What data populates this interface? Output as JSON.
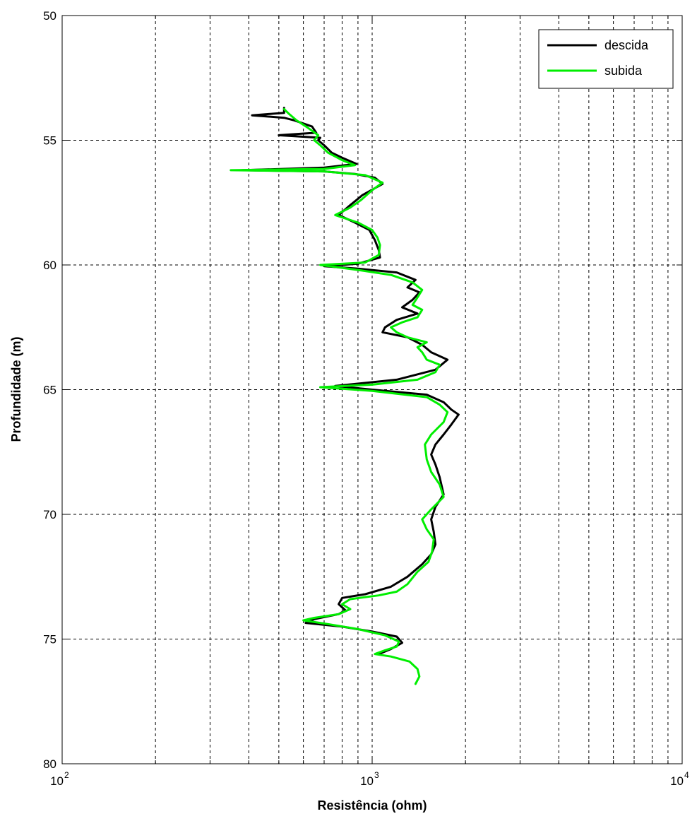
{
  "chart_data": {
    "type": "line",
    "title": "",
    "xlabel": "Resistência (ohm)",
    "ylabel": "Profundidade (m)",
    "xscale": "log",
    "xlim": [
      100,
      10000
    ],
    "ylim": [
      50,
      80
    ],
    "y_reversed": true,
    "grid": true,
    "legend_position": "top-right",
    "x_ticks": [
      {
        "base": "10",
        "exp": "2",
        "value": 100
      },
      {
        "base": "10",
        "exp": "3",
        "value": 1000
      },
      {
        "base": "10",
        "exp": "4",
        "value": 10000
      }
    ],
    "y_ticks": [
      50,
      55,
      60,
      65,
      70,
      75,
      80
    ],
    "series": [
      {
        "name": "descida",
        "color": "#000000",
        "points": [
          [
            520,
            53.7
          ],
          [
            520,
            53.9
          ],
          [
            410,
            54.0
          ],
          [
            520,
            54.1
          ],
          [
            560,
            54.2
          ],
          [
            640,
            54.45
          ],
          [
            660,
            54.7
          ],
          [
            500,
            54.8
          ],
          [
            680,
            54.9
          ],
          [
            670,
            55.0
          ],
          [
            700,
            55.2
          ],
          [
            740,
            55.5
          ],
          [
            800,
            55.7
          ],
          [
            890,
            55.95
          ],
          [
            700,
            56.1
          ],
          [
            380,
            56.2
          ],
          [
            700,
            56.25
          ],
          [
            880,
            56.35
          ],
          [
            1020,
            56.5
          ],
          [
            1080,
            56.75
          ],
          [
            930,
            57.2
          ],
          [
            850,
            57.6
          ],
          [
            780,
            58.0
          ],
          [
            880,
            58.3
          ],
          [
            980,
            58.6
          ],
          [
            1020,
            59.0
          ],
          [
            1050,
            59.4
          ],
          [
            1060,
            59.7
          ],
          [
            900,
            59.95
          ],
          [
            700,
            60.05
          ],
          [
            900,
            60.15
          ],
          [
            1200,
            60.3
          ],
          [
            1380,
            60.6
          ],
          [
            1300,
            60.9
          ],
          [
            1420,
            61.1
          ],
          [
            1350,
            61.4
          ],
          [
            1250,
            61.7
          ],
          [
            1400,
            61.95
          ],
          [
            1200,
            62.2
          ],
          [
            1100,
            62.5
          ],
          [
            1080,
            62.7
          ],
          [
            1300,
            62.9
          ],
          [
            1450,
            63.2
          ],
          [
            1550,
            63.5
          ],
          [
            1750,
            63.8
          ],
          [
            1600,
            64.2
          ],
          [
            1200,
            64.6
          ],
          [
            760,
            64.85
          ],
          [
            1000,
            65.0
          ],
          [
            1500,
            65.2
          ],
          [
            1700,
            65.5
          ],
          [
            1800,
            65.8
          ],
          [
            1900,
            66.0
          ],
          [
            1800,
            66.4
          ],
          [
            1700,
            66.8
          ],
          [
            1600,
            67.2
          ],
          [
            1550,
            67.6
          ],
          [
            1600,
            68.0
          ],
          [
            1650,
            68.5
          ],
          [
            1700,
            69.2
          ],
          [
            1600,
            69.7
          ],
          [
            1550,
            70.2
          ],
          [
            1580,
            70.7
          ],
          [
            1600,
            71.2
          ],
          [
            1550,
            71.6
          ],
          [
            1450,
            72.0
          ],
          [
            1300,
            72.5
          ],
          [
            1150,
            72.9
          ],
          [
            950,
            73.2
          ],
          [
            800,
            73.35
          ],
          [
            780,
            73.6
          ],
          [
            820,
            73.85
          ],
          [
            780,
            74.0
          ],
          [
            650,
            74.2
          ],
          [
            610,
            74.35
          ],
          [
            800,
            74.5
          ],
          [
            1000,
            74.7
          ],
          [
            1200,
            74.9
          ],
          [
            1250,
            75.15
          ],
          [
            1150,
            75.4
          ],
          [
            1050,
            75.6
          ]
        ]
      },
      {
        "name": "subida",
        "color": "#00ee00",
        "points": [
          [
            1380,
            76.8
          ],
          [
            1420,
            76.5
          ],
          [
            1400,
            76.2
          ],
          [
            1320,
            75.9
          ],
          [
            1150,
            75.7
          ],
          [
            1020,
            75.6
          ],
          [
            1100,
            75.45
          ],
          [
            1200,
            75.3
          ],
          [
            1220,
            75.1
          ],
          [
            1100,
            74.85
          ],
          [
            900,
            74.6
          ],
          [
            720,
            74.4
          ],
          [
            600,
            74.25
          ],
          [
            650,
            74.15
          ],
          [
            780,
            74.0
          ],
          [
            850,
            73.8
          ],
          [
            800,
            73.6
          ],
          [
            850,
            73.4
          ],
          [
            1050,
            73.25
          ],
          [
            1200,
            73.1
          ],
          [
            1300,
            72.8
          ],
          [
            1400,
            72.3
          ],
          [
            1520,
            71.9
          ],
          [
            1560,
            71.5
          ],
          [
            1580,
            71.0
          ],
          [
            1500,
            70.6
          ],
          [
            1450,
            70.2
          ],
          [
            1550,
            69.8
          ],
          [
            1700,
            69.3
          ],
          [
            1650,
            68.8
          ],
          [
            1550,
            68.3
          ],
          [
            1500,
            67.8
          ],
          [
            1480,
            67.2
          ],
          [
            1550,
            66.8
          ],
          [
            1700,
            66.3
          ],
          [
            1750,
            65.9
          ],
          [
            1650,
            65.6
          ],
          [
            1500,
            65.3
          ],
          [
            1000,
            65.05
          ],
          [
            680,
            64.9
          ],
          [
            1000,
            64.8
          ],
          [
            1400,
            64.6
          ],
          [
            1600,
            64.3
          ],
          [
            1650,
            64.0
          ],
          [
            1500,
            63.8
          ],
          [
            1450,
            63.5
          ],
          [
            1400,
            63.3
          ],
          [
            1500,
            63.1
          ],
          [
            1300,
            62.9
          ],
          [
            1200,
            62.7
          ],
          [
            1150,
            62.5
          ],
          [
            1250,
            62.3
          ],
          [
            1400,
            62.1
          ],
          [
            1450,
            61.8
          ],
          [
            1350,
            61.6
          ],
          [
            1400,
            61.3
          ],
          [
            1450,
            61.0
          ],
          [
            1350,
            60.7
          ],
          [
            1150,
            60.4
          ],
          [
            900,
            60.2
          ],
          [
            680,
            60.0
          ],
          [
            950,
            59.9
          ],
          [
            1050,
            59.6
          ],
          [
            1060,
            59.2
          ],
          [
            1040,
            58.9
          ],
          [
            1000,
            58.6
          ],
          [
            900,
            58.3
          ],
          [
            760,
            58.0
          ],
          [
            850,
            57.7
          ],
          [
            920,
            57.4
          ],
          [
            1000,
            57.0
          ],
          [
            1080,
            56.7
          ],
          [
            950,
            56.4
          ],
          [
            700,
            56.25
          ],
          [
            350,
            56.2
          ],
          [
            700,
            56.15
          ],
          [
            880,
            56.0
          ],
          [
            800,
            55.8
          ],
          [
            720,
            55.5
          ],
          [
            680,
            55.2
          ],
          [
            650,
            55.0
          ],
          [
            670,
            54.8
          ],
          [
            620,
            54.5
          ],
          [
            570,
            54.2
          ],
          [
            540,
            53.95
          ],
          [
            520,
            53.75
          ]
        ]
      }
    ]
  }
}
